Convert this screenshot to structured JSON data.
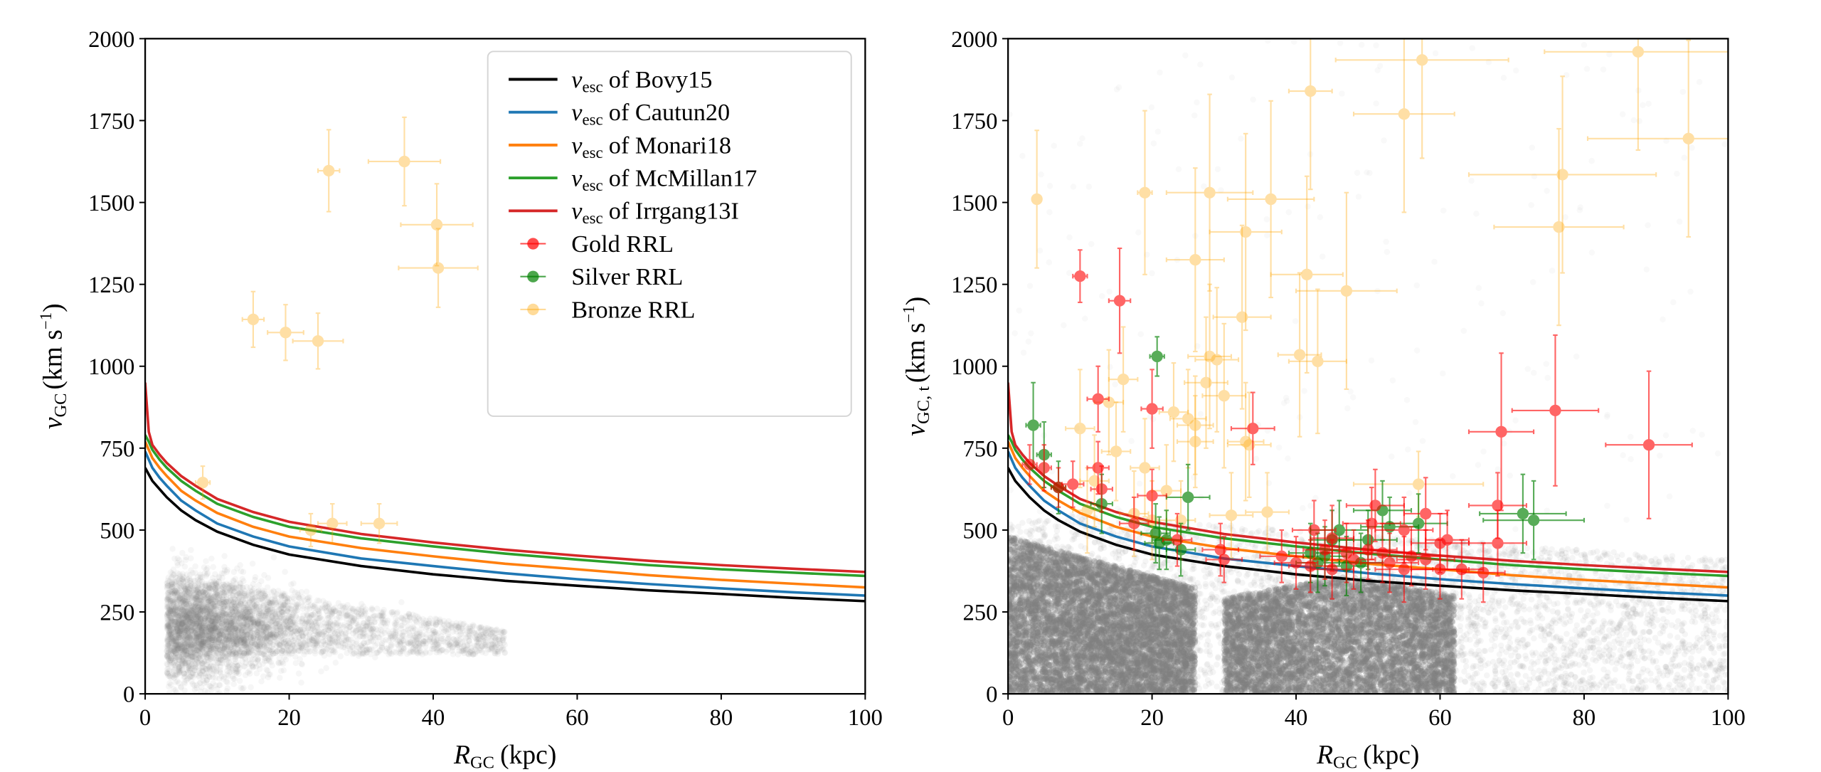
{
  "chart_data": [
    {
      "type": "scatter",
      "panel": "left",
      "xlabel": {
        "symbol": "R",
        "subscript": "GC",
        "unit": "(kpc)"
      },
      "ylabel": {
        "symbol": "v",
        "subscript": "GC",
        "unit_pre": "(km s",
        "unit_sup": "−1",
        "unit_post": ")"
      },
      "xlim": [
        0,
        100
      ],
      "ylim": [
        0,
        2000
      ],
      "xticks": [
        0,
        20,
        40,
        60,
        80,
        100
      ],
      "yticks": [
        0,
        250,
        500,
        750,
        1000,
        1250,
        1500,
        1750,
        2000
      ],
      "grid": false,
      "legend_placement": "top-right",
      "legend": [
        {
          "symbol": "v",
          "subscript": "esc",
          "text": "of Bovy15",
          "color": "#000000",
          "kind": "line"
        },
        {
          "symbol": "v",
          "subscript": "esc",
          "text": "of Cautun20",
          "color": "#1f77b4",
          "kind": "line"
        },
        {
          "symbol": "v",
          "subscript": "esc",
          "text": "of Monari18",
          "color": "#ff7f0e",
          "kind": "line"
        },
        {
          "symbol": "v",
          "subscript": "esc",
          "text": "of McMillan17",
          "color": "#2ca02c",
          "kind": "line"
        },
        {
          "symbol": "v",
          "subscript": "esc",
          "text": "of Irrgang13I",
          "color": "#d62728",
          "kind": "line"
        },
        {
          "symbol": "",
          "subscript": "",
          "text": "Gold RRL",
          "color": "#ff0000",
          "kind": "errorbar"
        },
        {
          "symbol": "",
          "subscript": "",
          "text": "Silver RRL",
          "color": "#008000",
          "kind": "errorbar"
        },
        {
          "symbol": "",
          "subscript": "",
          "text": "Bronze RRL",
          "color": "#ffa500",
          "kind": "errorbar"
        }
      ],
      "bronze_points_x_y_xerr_yerr": [
        [
          15,
          1143,
          1.5,
          85
        ],
        [
          19.5,
          1103,
          2.5,
          85
        ],
        [
          24,
          1077,
          3.5,
          85
        ],
        [
          25.5,
          1597,
          1.5,
          125
        ],
        [
          36,
          1625,
          5,
          135
        ],
        [
          40.5,
          1432,
          5,
          125
        ],
        [
          40.7,
          1300,
          5.5,
          120
        ],
        [
          8,
          645,
          1,
          50
        ],
        [
          23,
          500,
          1.5,
          50
        ],
        [
          26,
          520,
          2,
          60
        ],
        [
          32.5,
          520,
          2.5,
          60
        ]
      ]
    },
    {
      "type": "scatter",
      "panel": "right",
      "xlabel": {
        "symbol": "R",
        "subscript": "GC",
        "unit": "(kpc)"
      },
      "ylabel": {
        "symbol": "v",
        "subscript": "GC, t",
        "unit_pre": "(km s",
        "unit_sup": "−1",
        "unit_post": ")"
      },
      "xlim": [
        0,
        100
      ],
      "ylim": [
        0,
        2000
      ],
      "xticks": [
        0,
        20,
        40,
        60,
        80,
        100
      ],
      "yticks": [
        0,
        250,
        500,
        750,
        1000,
        1250,
        1500,
        1750,
        2000
      ],
      "grid": false,
      "gold_points_x_y_xerr_yerr": [
        [
          10,
          1275,
          1,
          80
        ],
        [
          15.5,
          1200,
          1.5,
          160
        ],
        [
          12.5,
          900,
          1.5,
          100
        ],
        [
          20,
          870,
          1.5,
          120
        ],
        [
          34,
          810,
          3,
          110
        ],
        [
          76,
          865,
          6,
          230
        ],
        [
          68.5,
          800,
          4.5,
          240
        ],
        [
          89,
          760,
          6,
          225
        ],
        [
          3,
          700,
          1,
          60
        ],
        [
          5,
          690,
          1,
          70
        ],
        [
          12.5,
          690,
          1.5,
          80
        ],
        [
          13,
          625,
          1.5,
          70
        ],
        [
          9,
          640,
          1.5,
          70
        ],
        [
          7,
          630,
          1,
          60
        ],
        [
          20,
          605,
          2,
          80
        ],
        [
          17.5,
          520,
          2,
          80
        ],
        [
          23.5,
          470,
          2,
          80
        ],
        [
          29.5,
          440,
          2.5,
          80
        ],
        [
          30,
          410,
          2.5,
          70
        ],
        [
          38,
          420,
          3,
          80
        ],
        [
          42.5,
          500,
          3,
          90
        ],
        [
          45,
          475,
          3,
          100
        ],
        [
          50.5,
          520,
          4,
          110
        ],
        [
          51,
          575,
          4,
          110
        ],
        [
          55,
          500,
          4,
          100
        ],
        [
          58,
          550,
          3,
          110
        ],
        [
          68,
          575,
          4,
          100
        ],
        [
          68,
          460,
          4,
          100
        ],
        [
          47,
          430,
          3,
          90
        ],
        [
          44,
          440,
          3,
          90
        ],
        [
          48,
          410,
          3,
          90
        ],
        [
          50,
          440,
          4,
          90
        ],
        [
          52,
          430,
          4,
          90
        ],
        [
          53,
          400,
          4,
          90
        ],
        [
          55,
          380,
          4,
          100
        ],
        [
          56,
          420,
          4,
          90
        ],
        [
          58,
          410,
          4,
          90
        ],
        [
          60,
          460,
          4,
          90
        ],
        [
          61,
          470,
          3,
          90
        ],
        [
          60,
          380,
          4,
          90
        ],
        [
          63,
          380,
          3,
          90
        ],
        [
          66,
          370,
          3,
          90
        ],
        [
          45,
          380,
          3,
          90
        ],
        [
          40,
          400,
          3,
          80
        ],
        [
          42,
          390,
          3,
          80
        ]
      ],
      "silver_points_x_y_xerr_yerr": [
        [
          20.7,
          1030,
          1,
          60
        ],
        [
          3.5,
          820,
          1,
          130
        ],
        [
          5,
          730,
          1,
          100
        ],
        [
          7,
          630,
          1,
          80
        ],
        [
          13,
          580,
          1.5,
          90
        ],
        [
          20.5,
          490,
          2,
          90
        ],
        [
          22,
          470,
          2,
          90
        ],
        [
          25,
          600,
          3,
          100
        ],
        [
          21,
          460,
          2,
          80
        ],
        [
          24,
          440,
          2,
          80
        ],
        [
          42,
          430,
          3,
          90
        ],
        [
          45,
          470,
          3,
          90
        ],
        [
          46,
          500,
          4,
          90
        ],
        [
          50,
          470,
          4,
          90
        ],
        [
          52,
          560,
          4,
          90
        ],
        [
          53,
          510,
          4,
          90
        ],
        [
          57,
          520,
          4,
          90
        ],
        [
          71.5,
          550,
          6,
          120
        ],
        [
          73,
          530,
          7,
          120
        ],
        [
          43,
          400,
          3,
          90
        ],
        [
          47,
          390,
          3,
          90
        ],
        [
          49,
          400,
          3,
          90
        ],
        [
          44,
          420,
          3,
          90
        ]
      ],
      "bronze_points_x_y_xerr_yerr": [
        [
          4,
          1510,
          0.5,
          210
        ],
        [
          57.5,
          1935,
          12,
          300
        ],
        [
          55,
          1770,
          7,
          300
        ],
        [
          87.5,
          1960,
          13,
          300
        ],
        [
          42,
          1840,
          3,
          300
        ],
        [
          94.5,
          1695,
          14,
          300
        ],
        [
          19,
          1530,
          1,
          250
        ],
        [
          28,
          1530,
          6,
          300
        ],
        [
          36.5,
          1510,
          6,
          300
        ],
        [
          33,
          1410,
          5,
          300
        ],
        [
          77,
          1585,
          13,
          300
        ],
        [
          76.5,
          1425,
          9,
          300
        ],
        [
          26,
          1325,
          4,
          280
        ],
        [
          41.5,
          1280,
          5,
          300
        ],
        [
          32.5,
          1150,
          4,
          280
        ],
        [
          47,
          1230,
          7,
          300
        ],
        [
          40.5,
          1035,
          3,
          250
        ],
        [
          43,
          1015,
          4,
          220
        ],
        [
          28,
          1030,
          3,
          220
        ],
        [
          29,
          1020,
          3,
          220
        ],
        [
          27.5,
          950,
          3,
          200
        ],
        [
          30,
          910,
          3,
          220
        ],
        [
          33,
          770,
          2.5,
          180
        ],
        [
          33.5,
          760,
          3,
          160
        ],
        [
          10,
          810,
          2,
          180
        ],
        [
          16,
          960,
          2,
          160
        ],
        [
          14,
          890,
          2,
          160
        ],
        [
          15,
          740,
          2,
          150
        ],
        [
          19,
          690,
          2,
          150
        ],
        [
          22,
          620,
          2,
          140
        ],
        [
          23,
          860,
          2,
          150
        ],
        [
          25,
          840,
          2.5,
          150
        ],
        [
          26,
          820,
          2.5,
          150
        ],
        [
          26,
          770,
          2.5,
          140
        ],
        [
          12,
          650,
          2,
          140
        ],
        [
          11,
          560,
          2,
          130
        ],
        [
          17.5,
          550,
          2,
          130
        ],
        [
          31,
          545,
          3,
          130
        ],
        [
          36,
          555,
          3,
          120
        ],
        [
          57,
          640,
          9,
          100
        ],
        [
          24,
          530,
          2,
          120
        ],
        [
          20,
          530,
          2,
          120
        ]
      ]
    }
  ],
  "escape_curves": {
    "r": [
      0,
      0.5,
      1,
      2,
      3,
      5,
      7,
      10,
      15,
      20,
      30,
      40,
      50,
      60,
      70,
      80,
      90,
      100
    ],
    "series": [
      {
        "model": "Bovy15",
        "color": "#000000",
        "values": [
          690,
          670,
          650,
          625,
          600,
          560,
          530,
          495,
          455,
          425,
          390,
          365,
          345,
          330,
          316,
          305,
          293,
          283
        ]
      },
      {
        "model": "Cautun20",
        "color": "#1f77b4",
        "values": [
          740,
          715,
          690,
          660,
          635,
          590,
          560,
          520,
          480,
          450,
          413,
          390,
          368,
          350,
          335,
          322,
          310,
          300
        ]
      },
      {
        "model": "Monari18",
        "color": "#ff7f0e",
        "values": [
          770,
          745,
          720,
          690,
          665,
          620,
          590,
          552,
          510,
          480,
          445,
          420,
          397,
          380,
          362,
          348,
          336,
          325
        ]
      },
      {
        "model": "McMillan17",
        "color": "#2ca02c",
        "values": [
          790,
          770,
          745,
          715,
          690,
          650,
          620,
          580,
          540,
          510,
          475,
          450,
          428,
          410,
          393,
          380,
          370,
          360
        ]
      },
      {
        "model": "Irrgang13I",
        "color": "#d62728",
        "values": [
          950,
          800,
          760,
          730,
          705,
          665,
          635,
          595,
          555,
          525,
          488,
          462,
          440,
          422,
          406,
          393,
          382,
          372
        ]
      }
    ]
  },
  "colors": {
    "gold": "#ff0000",
    "silver": "#008000",
    "bronze": "#ffa500",
    "background_stars": "#808080"
  }
}
